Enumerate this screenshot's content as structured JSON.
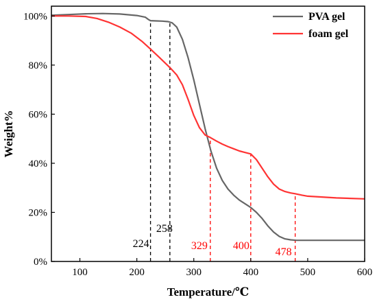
{
  "chart_data": {
    "type": "line",
    "xlabel": "Temperature/℃",
    "ylabel": "Weight%",
    "xlim": [
      50,
      600
    ],
    "ylim": [
      0,
      104
    ],
    "x_ticks": [
      100,
      200,
      300,
      400,
      500,
      600
    ],
    "x_tick_labels": [
      "100",
      "200",
      "300",
      "400",
      "500",
      "600"
    ],
    "y_ticks": [
      0,
      20,
      40,
      60,
      80,
      100
    ],
    "y_tick_labels": [
      "0%",
      "20%",
      "40%",
      "60%",
      "80%",
      "100%"
    ],
    "grid": false,
    "legend": "top-right",
    "series": [
      {
        "name": "PVA gel",
        "color": "#666666",
        "x": [
          50,
          80,
          110,
          140,
          170,
          200,
          215,
          220,
          224,
          235,
          245,
          255,
          262,
          270,
          280,
          290,
          300,
          310,
          320,
          330,
          340,
          350,
          360,
          370,
          380,
          390,
          400,
          410,
          420,
          430,
          440,
          450,
          460,
          470,
          480,
          490,
          500,
          550,
          600
        ],
        "y": [
          100.3,
          100.6,
          100.9,
          101.0,
          100.8,
          100.2,
          99.5,
          98.6,
          98.1,
          98.0,
          97.9,
          97.7,
          97.2,
          95.5,
          90.5,
          83.0,
          74.0,
          64.0,
          54.0,
          45.0,
          38.0,
          33.0,
          29.5,
          27.0,
          25.0,
          23.5,
          22.0,
          20.0,
          17.5,
          14.5,
          12.0,
          10.2,
          9.2,
          8.8,
          8.6,
          8.6,
          8.6,
          8.6,
          8.6
        ]
      },
      {
        "name": "foam gel",
        "color": "#ff3333",
        "x": [
          50,
          80,
          110,
          130,
          150,
          170,
          190,
          210,
          224,
          240,
          258,
          270,
          280,
          290,
          300,
          310,
          320,
          329,
          340,
          350,
          360,
          370,
          380,
          390,
          400,
          410,
          420,
          430,
          440,
          450,
          460,
          470,
          478,
          490,
          500,
          550,
          600
        ],
        "y": [
          100.0,
          100.0,
          99.8,
          99.0,
          97.5,
          95.5,
          93.0,
          89.5,
          86.5,
          83.0,
          79.0,
          76.0,
          72.0,
          66.0,
          59.5,
          54.5,
          51.5,
          50.5,
          49.0,
          47.8,
          46.8,
          45.9,
          45.0,
          44.4,
          43.8,
          41.5,
          38.0,
          34.5,
          31.5,
          29.5,
          28.5,
          27.9,
          27.6,
          27.0,
          26.6,
          25.9,
          25.5
        ]
      }
    ],
    "annotations": [
      {
        "label": "224",
        "x": 224,
        "color": "#000000",
        "end_y": 98.1
      },
      {
        "label": "258",
        "x": 258,
        "color": "#000000",
        "end_y": 97.6
      },
      {
        "label": "329",
        "x": 329,
        "color": "#ff0000",
        "end_y": 50.5
      },
      {
        "label": "400",
        "x": 400,
        "color": "#ff0000",
        "end_y": 43.8
      },
      {
        "label": "478",
        "x": 478,
        "color": "#ff0000",
        "end_y": 27.6
      }
    ]
  }
}
